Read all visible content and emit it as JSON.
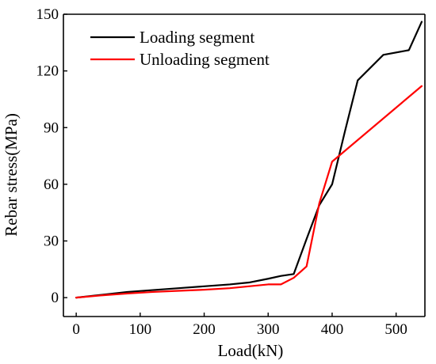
{
  "chart_data": {
    "type": "line",
    "title": "",
    "xlabel": "Load(kN)",
    "ylabel": "Rebar stress(MPa)",
    "xlim": [
      -20,
      545
    ],
    "ylim": [
      -10,
      150
    ],
    "xticks": [
      0,
      100,
      200,
      300,
      400,
      500
    ],
    "yticks": [
      0,
      30,
      60,
      90,
      120,
      150
    ],
    "grid": false,
    "legend_position": "top-left",
    "series": [
      {
        "name": "Loading segment",
        "color": "#000000",
        "x": [
          0,
          40,
          80,
          120,
          160,
          200,
          240,
          270,
          300,
          320,
          340,
          360,
          380,
          400,
          420,
          440,
          480,
          520,
          540
        ],
        "y": [
          0,
          1.5,
          3,
          4,
          5,
          6,
          7,
          8,
          10,
          11.5,
          12.5,
          31,
          49,
          60,
          88,
          115,
          128.5,
          131,
          146
        ]
      },
      {
        "name": "Unloading segment",
        "color": "#ff0000",
        "x": [
          0,
          40,
          80,
          120,
          160,
          200,
          240,
          270,
          300,
          320,
          340,
          360,
          380,
          400,
          540
        ],
        "y": [
          0,
          1.2,
          2.2,
          3,
          3.6,
          4.2,
          5,
          6,
          7,
          7,
          10.5,
          16.5,
          50,
          72,
          112
        ]
      }
    ]
  }
}
